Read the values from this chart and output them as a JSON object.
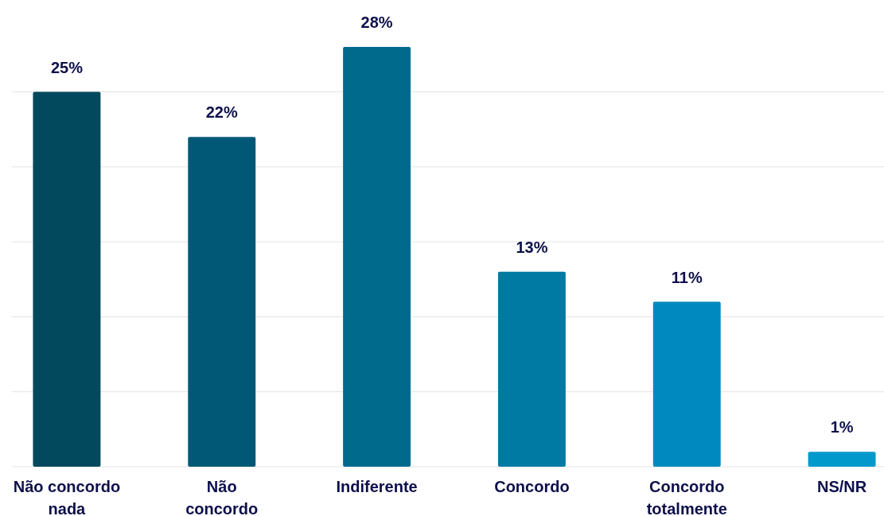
{
  "chart_data": {
    "type": "bar",
    "categories": [
      "Não concordo nada",
      "Não concordo",
      "Indiferente",
      "Concordo",
      "Concordo totalmente",
      "NS/NR"
    ],
    "values": [
      25,
      22,
      28,
      13,
      11,
      1
    ],
    "colors": [
      "#03495e",
      "#005877",
      "#006a8c",
      "#017aa3",
      "#0089bf",
      "#0199cc"
    ],
    "value_labels": [
      "25%",
      "22%",
      "28%",
      "13%",
      "11%",
      "1%"
    ],
    "yticks": [
      {
        "value": 0,
        "label": null
      },
      {
        "value": 5,
        "label": null
      },
      {
        "value": 10,
        "label": null
      },
      {
        "value": 15,
        "label": null
      },
      {
        "value": 20,
        "label": null
      },
      {
        "value": 25,
        "label": null
      }
    ],
    "grid": "y",
    "tick_labels": "x"
  }
}
